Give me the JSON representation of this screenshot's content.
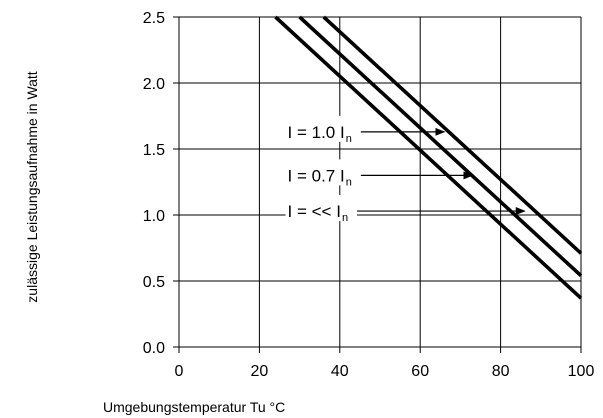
{
  "chart_data": {
    "type": "line",
    "title": "",
    "xlabel": "Umgebungstemperatur Tu °C",
    "ylabel": "zulässige Leistungsaufnahme in Watt",
    "xlim": [
      0,
      100
    ],
    "ylim": [
      0,
      2.5
    ],
    "x_ticks": [
      "0",
      "20",
      "40",
      "60",
      "80",
      "100"
    ],
    "y_ticks": [
      "0.0",
      "0.5",
      "1.0",
      "1.5",
      "2.0",
      "2.5"
    ],
    "grid": true,
    "series": [
      {
        "x": [
          24,
          100
        ],
        "y": [
          2.5,
          0.37
        ]
      },
      {
        "x": [
          30,
          100
        ],
        "y": [
          2.5,
          0.54
        ]
      },
      {
        "x": [
          36,
          100
        ],
        "y": [
          2.5,
          0.71
        ]
      }
    ],
    "annotations": [
      {
        "text": "I = 1.0 I",
        "sub": "n",
        "label_x": 27,
        "label_y": 1.63,
        "arrow_to_x": 66,
        "arrow_to_y": 1.63
      },
      {
        "text": "I = 0.7 I",
        "sub": "n",
        "label_x": 27,
        "label_y": 1.3,
        "arrow_to_x": 73,
        "arrow_to_y": 1.3
      },
      {
        "text": "I = << I",
        "sub": "n",
        "label_x": 27,
        "label_y": 1.03,
        "arrow_to_x": 86,
        "arrow_to_y": 1.03
      }
    ]
  }
}
